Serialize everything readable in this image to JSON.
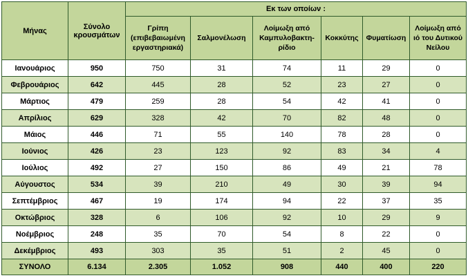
{
  "headers": {
    "month": "Μήνας",
    "total": "Σύνολο κρουσμάτων",
    "group": "Εκ των οποίων :",
    "columns": [
      "Γρίπη (επιβεβαιωμένη εργαστηριακά)",
      "Σαλμονέλωση",
      "Λοίμωξη από Καμπυλοβακτη-ρίδιο",
      "Κοκκύτης",
      "Φυματίωση",
      "Λοίμωξη από ιό του Δυτικού Νείλου"
    ]
  },
  "rows": [
    {
      "month": "Ιανουάριος",
      "total": "950",
      "values": [
        "750",
        "31",
        "74",
        "11",
        "29",
        "0"
      ]
    },
    {
      "month": "Φεβρουάριος",
      "total": "642",
      "values": [
        "445",
        "28",
        "52",
        "23",
        "27",
        "0"
      ]
    },
    {
      "month": "Μάρτιος",
      "total": "479",
      "values": [
        "259",
        "28",
        "54",
        "42",
        "41",
        "0"
      ]
    },
    {
      "month": "Απρίλιος",
      "total": "629",
      "values": [
        "328",
        "42",
        "70",
        "82",
        "48",
        "0"
      ]
    },
    {
      "month": "Μάιος",
      "total": "446",
      "values": [
        "71",
        "55",
        "140",
        "78",
        "28",
        "0"
      ]
    },
    {
      "month": "Ιούνιος",
      "total": "426",
      "values": [
        "23",
        "123",
        "92",
        "83",
        "34",
        "4"
      ]
    },
    {
      "month": "Ιούλιος",
      "total": "492",
      "values": [
        "27",
        "150",
        "86",
        "49",
        "21",
        "78"
      ]
    },
    {
      "month": "Αύγουστος",
      "total": "534",
      "values": [
        "39",
        "210",
        "49",
        "30",
        "39",
        "94"
      ]
    },
    {
      "month": "Σεπτέμβριος",
      "total": "467",
      "values": [
        "19",
        "174",
        "94",
        "22",
        "37",
        "35"
      ]
    },
    {
      "month": "Οκτώβριος",
      "total": "328",
      "values": [
        "6",
        "106",
        "92",
        "10",
        "29",
        "9"
      ]
    },
    {
      "month": "Νοέμβριος",
      "total": "248",
      "values": [
        "35",
        "70",
        "54",
        "8",
        "22",
        "0"
      ]
    },
    {
      "month": "Δεκέμβριος",
      "total": "493",
      "values": [
        "303",
        "35",
        "51",
        "2",
        "45",
        "0"
      ]
    }
  ],
  "footer": {
    "label": "ΣΥΝΟΛΟ",
    "total": "6.134",
    "values": [
      "2.305",
      "1.052",
      "908",
      "440",
      "400",
      "220"
    ]
  }
}
